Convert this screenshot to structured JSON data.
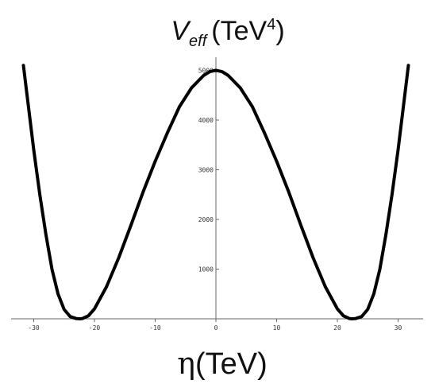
{
  "chart_data": {
    "type": "line",
    "title": {
      "main": "V",
      "subscript": "eff",
      "unit_prefix": "(TeV",
      "unit_superscript": "4",
      "unit_suffix": ")"
    },
    "xlabel": {
      "symbol": "η",
      "unit": "(TeV)"
    },
    "ylabel": "",
    "xlim": [
      -33,
      33
    ],
    "ylim": [
      0,
      5100
    ],
    "grid": false,
    "legend": "none",
    "x_ticks": [
      {
        "value": -30,
        "label": "-30"
      },
      {
        "value": -20,
        "label": "-20"
      },
      {
        "value": -10,
        "label": "-10"
      },
      {
        "value": 0,
        "label": "0"
      },
      {
        "value": 10,
        "label": "10"
      },
      {
        "value": 20,
        "label": "20"
      },
      {
        "value": 30,
        "label": "30"
      }
    ],
    "y_ticks": [
      {
        "value": 1000,
        "label": "1000"
      },
      {
        "value": 2000,
        "label": "2000"
      },
      {
        "value": 3000,
        "label": "3000"
      },
      {
        "value": 4000,
        "label": "4000"
      },
      {
        "value": 5000,
        "label": "5000"
      }
    ],
    "series": [
      {
        "color": "#000000",
        "x": [
          -31.7,
          -31,
          -30,
          -29,
          -28,
          -27,
          -26,
          -25,
          -24,
          -23,
          -22.4,
          -22,
          -21,
          -20,
          -18,
          -16,
          -14,
          -12,
          -10,
          -8,
          -6,
          -4,
          -2,
          -1,
          0,
          1,
          2,
          4,
          6,
          8,
          10,
          12,
          14,
          16,
          18,
          20,
          21,
          22,
          22.4,
          23,
          24,
          25,
          26,
          27,
          28,
          29,
          30,
          31,
          31.7
        ],
        "y": [
          5100,
          4400,
          3400,
          2500,
          1700,
          1000,
          500,
          190,
          45,
          5,
          0,
          5,
          60,
          200,
          650,
          1230,
          1880,
          2550,
          3170,
          3740,
          4270,
          4650,
          4900,
          4975,
          5000,
          4975,
          4900,
          4650,
          4270,
          3740,
          3170,
          2550,
          1880,
          1230,
          650,
          200,
          60,
          5,
          0,
          5,
          45,
          190,
          500,
          1000,
          1700,
          2500,
          3400,
          4400,
          5100
        ]
      }
    ]
  },
  "colors": {
    "curve": "#000000",
    "axes": "#666666",
    "text": "#111111"
  }
}
